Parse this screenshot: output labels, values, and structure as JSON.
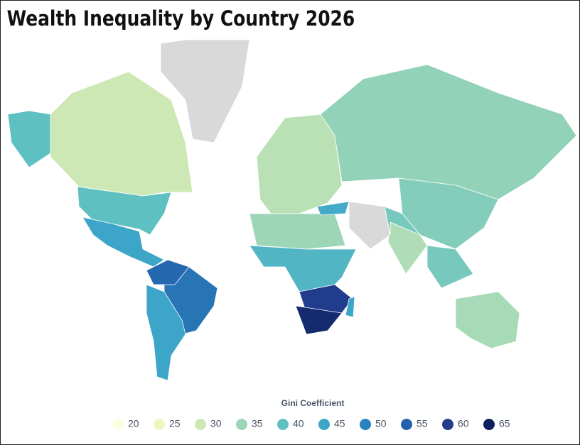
{
  "chart_data": {
    "type": "choropleth",
    "title": "Wealth Inequality by Country 2026",
    "legend_title": "Gini Coefficient",
    "legend_ticks": [
      20,
      25,
      30,
      35,
      40,
      45,
      50,
      55,
      60,
      65
    ],
    "colors": [
      "#fdfde0",
      "#eef6bf",
      "#cde8b4",
      "#9dd6b6",
      "#5fc0c2",
      "#3ca5c8",
      "#2a82be",
      "#2462ab",
      "#223c8d",
      "#0d1f5c"
    ],
    "no_data_color": "#d9d9d9",
    "values": [
      30,
      40,
      40,
      45,
      52,
      54,
      45,
      32,
      36,
      37,
      33,
      38,
      35,
      42,
      60,
      63,
      34,
      38,
      44,
      45
    ]
  }
}
